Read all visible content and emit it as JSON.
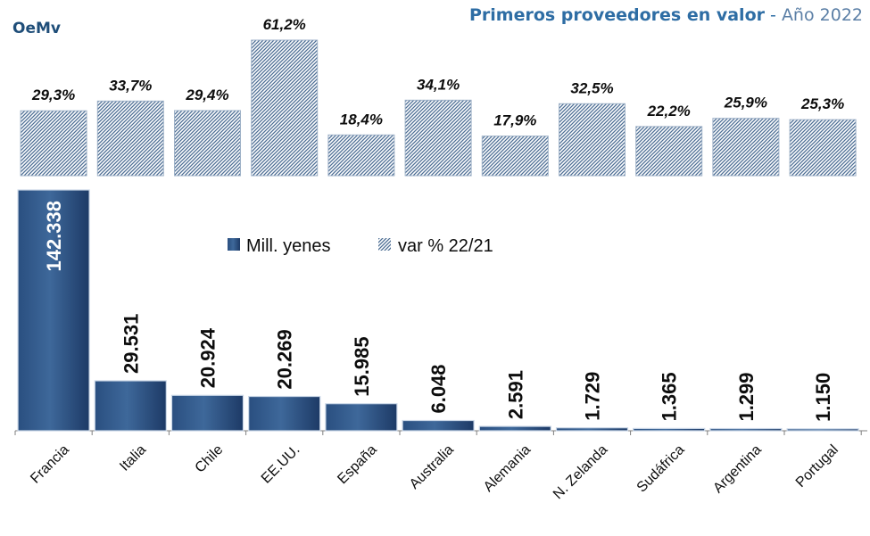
{
  "header": {
    "org": "OeMv",
    "title_main": "Primeros proveedores en valor",
    "title_sep": " - ",
    "title_year": "Año 2022"
  },
  "colors": {
    "bar_top": "#3e689a",
    "bar_bottom": "#1d3a66",
    "bar_edge": "#c9d6e6",
    "hatch_bg": "#ffffff",
    "hatch_line": "#4b6c93",
    "text_dark": "#0d0d0d",
    "value_label_white": "#ffffff"
  },
  "chart_data": {
    "type": "bar",
    "categories": [
      "Francia",
      "Italia",
      "Chile",
      "EE.UU.",
      "España",
      "Australia",
      "Alemania",
      "N. Zelanda",
      "Sudáfrica",
      "Argentina",
      "Portugal"
    ],
    "series": [
      {
        "name": "Mill. yenes",
        "values": [
          142338,
          29531,
          20924,
          20269,
          15985,
          6048,
          2591,
          1729,
          1365,
          1299,
          1150
        ],
        "labels": [
          "142.338",
          "29.531",
          "20.924",
          "20.269",
          "15.985",
          "6.048",
          "2.591",
          "1.729",
          "1.365",
          "1.299",
          "1.150"
        ]
      },
      {
        "name": "var % 22/21",
        "values": [
          29.3,
          33.7,
          29.4,
          61.2,
          18.4,
          34.1,
          17.9,
          32.5,
          22.2,
          25.9,
          25.3
        ],
        "labels": [
          "29,3%",
          "33,7%",
          "29,4%",
          "61,2%",
          "18,4%",
          "34,1%",
          "17,9%",
          "32,5%",
          "22,2%",
          "25,9%",
          "25,3%"
        ]
      }
    ],
    "legend": [
      "Mill. yenes",
      "var % 22/21"
    ],
    "legend_position": "center",
    "grid": false
  }
}
